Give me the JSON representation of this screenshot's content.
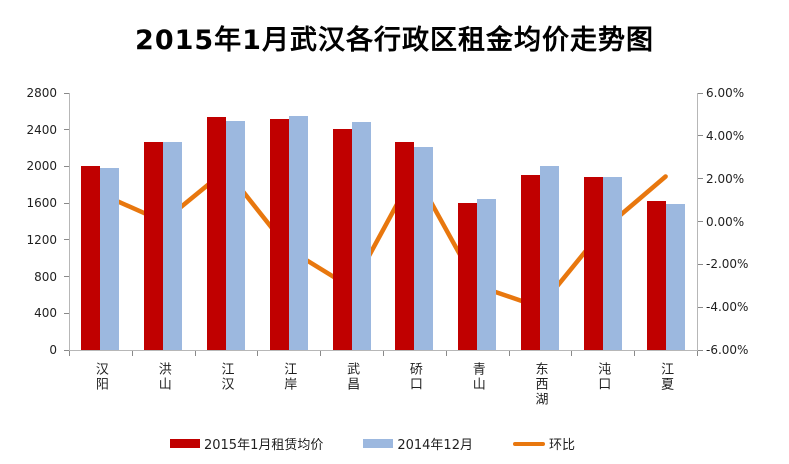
{
  "title": "2015年1月武汉各行政区租金均价走势图",
  "colors": {
    "bar_2015": "#c00000",
    "bar_2014": "#9cb8df",
    "line_mom": "#e8770e",
    "axis_line": "#b7b7b7",
    "tick": "#898989",
    "text": "#1f1f1f"
  },
  "chart_data": {
    "type": "bar",
    "subtype": "grouped bars with secondary-axis line",
    "title": "2015年1月武汉各行政区租金均价走势图",
    "categories": [
      "汉阳",
      "洪山",
      "江汉",
      "江岸",
      "武昌",
      "硚口",
      "青山",
      "东西湖",
      "沌口",
      "江夏"
    ],
    "series": [
      {
        "name": "2015年1月租赁均价",
        "type": "bar",
        "axis": "left",
        "color": "#c00000",
        "values": [
          2000,
          2270,
          2540,
          2520,
          2410,
          2270,
          1600,
          1910,
          1880,
          1620
        ]
      },
      {
        "name": "2014年12月",
        "type": "bar",
        "axis": "left",
        "color": "#9cb8df",
        "values": [
          1980,
          2270,
          2490,
          2550,
          2480,
          2210,
          1650,
          2000,
          1890,
          1590
        ]
      },
      {
        "name": "环比",
        "type": "line",
        "axis": "right",
        "color": "#e8770e",
        "values": [
          1.3,
          0.0,
          2.4,
          -1.3,
          -3.1,
          2.3,
          -3.0,
          -4.0,
          -0.4,
          2.1
        ]
      }
    ],
    "left_axis": {
      "min": 0,
      "max": 2800,
      "step": 400,
      "tick_labels": [
        "0",
        "400",
        "800",
        "1200",
        "1600",
        "2000",
        "2400",
        "2800"
      ]
    },
    "right_axis": {
      "min": -6,
      "max": 6,
      "step": 2,
      "tick_labels": [
        "-6.00%",
        "-4.00%",
        "-2.00%",
        "0.00%",
        "2.00%",
        "4.00%",
        "6.00%"
      ]
    },
    "grid": false,
    "legend_position": "bottom"
  },
  "legend": {
    "items": [
      {
        "label": "2015年1月租赁均价",
        "color": "#c00000",
        "shape": "rect"
      },
      {
        "label": "2014年12月",
        "color": "#9cb8df",
        "shape": "rect"
      },
      {
        "label": "环比",
        "color": "#e8770e",
        "shape": "line"
      }
    ]
  }
}
